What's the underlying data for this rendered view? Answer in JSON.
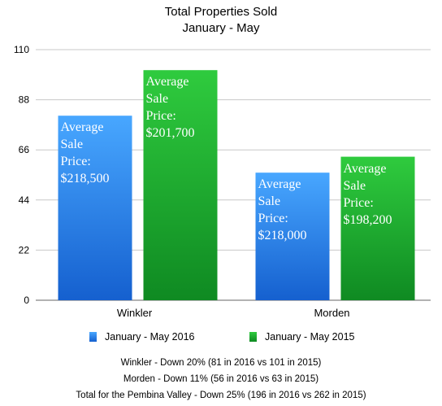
{
  "chart_data": {
    "type": "bar",
    "title": "Total Properties Sold",
    "subtitle": "January - May",
    "categories": [
      "Winkler",
      "Morden"
    ],
    "series": [
      {
        "name": "January - May 2016",
        "color": "#1f78e0",
        "values": [
          81,
          56
        ],
        "labels": [
          "Average Sale Price: $218,500",
          "Average Sale Price: $218,000"
        ]
      },
      {
        "name": "January - May 2015",
        "color": "#1aa52e",
        "values": [
          101,
          63
        ],
        "labels": [
          "Average Sale Price: $201,700",
          "Average Sale Price: $198,200"
        ]
      }
    ],
    "ylim": [
      0,
      110
    ],
    "yticks": [
      0,
      22,
      44,
      66,
      88,
      110
    ],
    "grid": true,
    "legend": "bottom",
    "xlabel": "",
    "ylabel": ""
  },
  "footnotes": [
    "Winkler - Down 20% (81 in 2016 vs 101 in 2015)",
    "Morden - Down 11% (56 in 2016 vs 63 in 2015)",
    "Total for the Pembina Valley - Down 25% (196 in 2016 vs 262 in 2015)"
  ]
}
